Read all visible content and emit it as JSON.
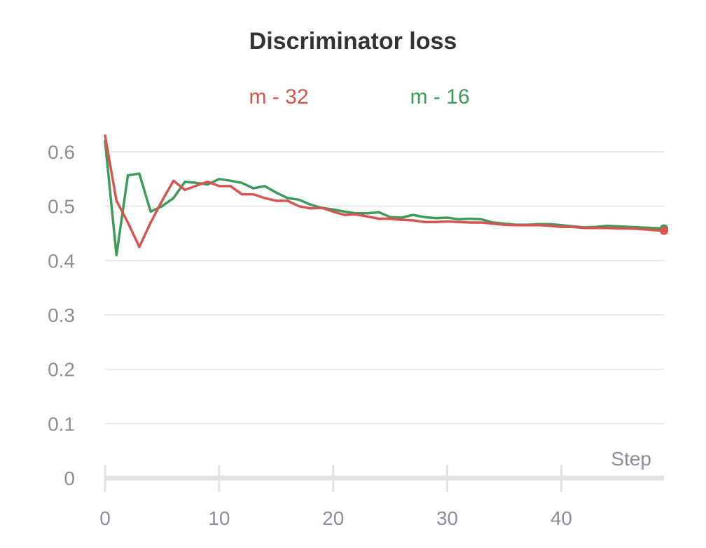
{
  "chart_data": {
    "type": "line",
    "title": "Discriminator loss",
    "xlabel": "Step",
    "ylabel": "",
    "xlim": [
      0,
      49
    ],
    "ylim": [
      0,
      0.6
    ],
    "xticks": [
      0,
      10,
      20,
      30,
      40
    ],
    "yticks": [
      0,
      0.1,
      0.2,
      0.3,
      0.4,
      0.5,
      0.6
    ],
    "ytick_labels": [
      "0",
      "0.1",
      "0.2",
      "0.3",
      "0.4",
      "0.5",
      "0.6"
    ],
    "grid": "horizontal",
    "legend_position": "top",
    "x": [
      0,
      1,
      2,
      3,
      4,
      5,
      6,
      7,
      8,
      9,
      10,
      11,
      12,
      13,
      14,
      15,
      16,
      17,
      18,
      19,
      20,
      21,
      22,
      23,
      24,
      25,
      26,
      27,
      28,
      29,
      30,
      31,
      32,
      33,
      34,
      35,
      36,
      37,
      38,
      39,
      40,
      41,
      42,
      43,
      44,
      45,
      46,
      47,
      48,
      49
    ],
    "series": [
      {
        "name": "m - 32",
        "color": "#d9534f",
        "values": [
          0.63,
          0.51,
          0.47,
          0.425,
          0.47,
          0.51,
          0.547,
          0.53,
          0.538,
          0.545,
          0.537,
          0.537,
          0.522,
          0.522,
          0.515,
          0.51,
          0.51,
          0.5,
          0.496,
          0.497,
          0.49,
          0.484,
          0.485,
          0.481,
          0.477,
          0.477,
          0.475,
          0.474,
          0.471,
          0.471,
          0.472,
          0.471,
          0.47,
          0.47,
          0.468,
          0.466,
          0.465,
          0.465,
          0.465,
          0.464,
          0.462,
          0.462,
          0.46,
          0.46,
          0.46,
          0.459,
          0.459,
          0.458,
          0.456,
          0.455
        ]
      },
      {
        "name": "m - 16",
        "color": "#3c9a5a",
        "values": [
          0.62,
          0.41,
          0.557,
          0.56,
          0.49,
          0.5,
          0.515,
          0.545,
          0.543,
          0.54,
          0.55,
          0.547,
          0.543,
          0.533,
          0.537,
          0.525,
          0.515,
          0.512,
          0.503,
          0.497,
          0.494,
          0.49,
          0.487,
          0.487,
          0.489,
          0.48,
          0.479,
          0.484,
          0.48,
          0.478,
          0.479,
          0.476,
          0.477,
          0.476,
          0.47,
          0.468,
          0.466,
          0.466,
          0.467,
          0.467,
          0.465,
          0.463,
          0.461,
          0.462,
          0.464,
          0.463,
          0.462,
          0.461,
          0.46,
          0.459
        ]
      }
    ]
  }
}
